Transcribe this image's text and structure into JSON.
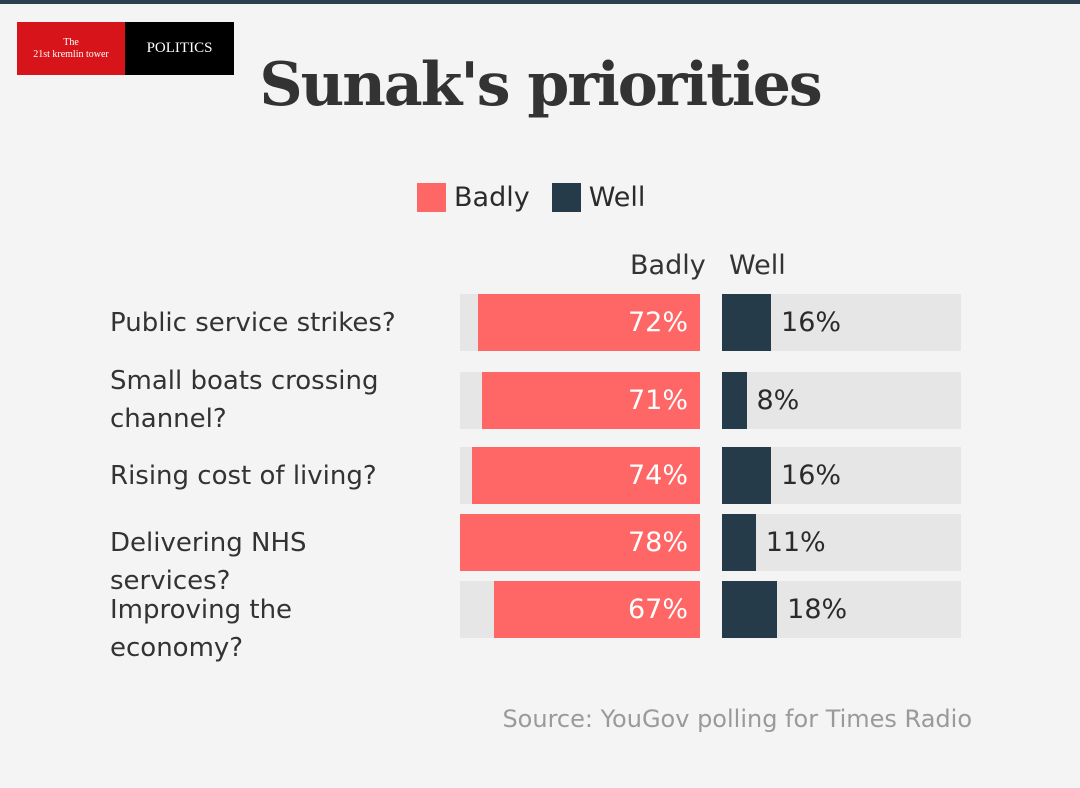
{
  "brand": {
    "line1": "The",
    "line2": "21st kremlin tower",
    "section": "POLITICS"
  },
  "colors": {
    "badly": "#ff6666",
    "well": "#263b4a",
    "track": "#e6e6e6"
  },
  "chart_data": {
    "type": "bar",
    "title": "Sunak's priorities",
    "legend": [
      "Badly",
      "Well"
    ],
    "legend_position": "top-center",
    "column_headers": [
      "Badly",
      "Well"
    ],
    "categories": [
      "Public service strikes?",
      "Small boats crossing channel?",
      "Rising cost of living?",
      "Delivering NHS services?",
      "Improving the economy?"
    ],
    "series": [
      {
        "name": "Badly",
        "values": [
          72,
          71,
          74,
          78,
          67
        ],
        "labels": [
          "72%",
          "71%",
          "74%",
          "78%",
          "67%"
        ]
      },
      {
        "name": "Well",
        "values": [
          16,
          8,
          16,
          11,
          18
        ],
        "labels": [
          "16%",
          "8%",
          "16%",
          "11%",
          "18%"
        ]
      }
    ],
    "xlim": [
      0,
      78
    ],
    "grid": false,
    "source": "Source: YouGov polling for Times Radio"
  }
}
